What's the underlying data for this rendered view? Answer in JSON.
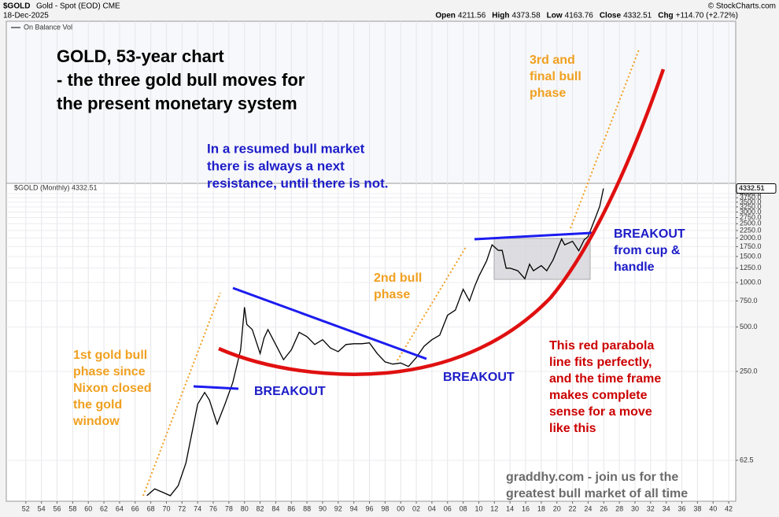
{
  "header": {
    "symbol": "$GOLD",
    "description": "Gold - Spot (EOD) CME",
    "date": "18-Dec-2025",
    "source": "© StockCharts.com",
    "stats": [
      {
        "label": "Open",
        "value": "4211.56"
      },
      {
        "label": "High",
        "value": "4373.58"
      },
      {
        "label": "Low",
        "value": "4163.76"
      },
      {
        "label": "Close",
        "value": "4332.51"
      },
      {
        "label": "Chg",
        "value": "+114.70 (+2.72%)"
      }
    ]
  },
  "chart_data": {
    "type": "line",
    "indicator_label": "On Balance Vol",
    "log_scale": true,
    "grid": true,
    "x": [
      1967.5,
      1968.5,
      1969.5,
      1970.5,
      1971.5,
      1972.5,
      1973.5,
      1974.0,
      1974.9,
      1975.5,
      1976.5,
      1977.5,
      1978.5,
      1979.5,
      1980.0,
      1980.3,
      1981.0,
      1982.0,
      1982.5,
      1983.0,
      1984.0,
      1985.0,
      1986.0,
      1987.0,
      1988.0,
      1989.0,
      1990.0,
      1991.0,
      1992.0,
      1993.0,
      1994.0,
      1995.0,
      1996.0,
      1997.0,
      1998.0,
      1999.0,
      2000.0,
      2001.0,
      2002.0,
      2003.0,
      2004.0,
      2005.0,
      2006.0,
      2007.0,
      2008.0,
      2008.8,
      2009.5,
      2010.0,
      2011.0,
      2011.7,
      2012.5,
      2013.0,
      2013.5,
      2014.0,
      2015.0,
      2015.9,
      2016.5,
      2017.0,
      2018.0,
      2018.7,
      2019.5,
      2020.6,
      2021.0,
      2022.0,
      2022.8,
      2023.5,
      2024.0,
      2024.5,
      2025.0,
      2025.5,
      2025.96
    ],
    "series": [
      {
        "name": "$GOLD (Monthly) 4332.51",
        "color": "#000000",
        "values": [
          36,
          40,
          38,
          36,
          42,
          60,
          110,
          150,
          180,
          160,
          110,
          150,
          210,
          350,
          680,
          520,
          480,
          330,
          420,
          480,
          380,
          300,
          350,
          460,
          430,
          380,
          410,
          360,
          340,
          380,
          385,
          385,
          390,
          330,
          290,
          280,
          285,
          270,
          310,
          370,
          410,
          440,
          600,
          650,
          900,
          750,
          950,
          1100,
          1400,
          1800,
          1650,
          1650,
          1250,
          1250,
          1200,
          1060,
          1330,
          1200,
          1300,
          1200,
          1420,
          1970,
          1800,
          1900,
          1640,
          1950,
          2050,
          2400,
          2800,
          3300,
          4332.51
        ]
      }
    ],
    "xlim": [
      1949.5,
      2042.9
    ],
    "ylim": [
      33,
      4692
    ],
    "xticks": [
      {
        "value": 1952,
        "label": "52"
      },
      {
        "value": 1954,
        "label": "54"
      },
      {
        "value": 1956,
        "label": "56"
      },
      {
        "value": 1958,
        "label": "58"
      },
      {
        "value": 1960,
        "label": "60"
      },
      {
        "value": 1962,
        "label": "62"
      },
      {
        "value": 1964,
        "label": "64"
      },
      {
        "value": 1966,
        "label": "66"
      },
      {
        "value": 1968,
        "label": "68"
      },
      {
        "value": 1970,
        "label": "70"
      },
      {
        "value": 1972,
        "label": "72"
      },
      {
        "value": 1974,
        "label": "74"
      },
      {
        "value": 1976,
        "label": "76"
      },
      {
        "value": 1978,
        "label": "78"
      },
      {
        "value": 1980,
        "label": "80"
      },
      {
        "value": 1982,
        "label": "82"
      },
      {
        "value": 1984,
        "label": "84"
      },
      {
        "value": 1986,
        "label": "86"
      },
      {
        "value": 1988,
        "label": "88"
      },
      {
        "value": 1990,
        "label": "90"
      },
      {
        "value": 1992,
        "label": "92"
      },
      {
        "value": 1994,
        "label": "94"
      },
      {
        "value": 1996,
        "label": "96"
      },
      {
        "value": 1998,
        "label": "98"
      },
      {
        "value": 2000,
        "label": "00"
      },
      {
        "value": 2002,
        "label": "02"
      },
      {
        "value": 2004,
        "label": "04"
      },
      {
        "value": 2006,
        "label": "06"
      },
      {
        "value": 2008,
        "label": "08"
      },
      {
        "value": 2010,
        "label": "10"
      },
      {
        "value": 2012,
        "label": "12"
      },
      {
        "value": 2014,
        "label": "14"
      },
      {
        "value": 2016,
        "label": "16"
      },
      {
        "value": 2018,
        "label": "18"
      },
      {
        "value": 2020,
        "label": "20"
      },
      {
        "value": 2022,
        "label": "22"
      },
      {
        "value": 2024,
        "label": "24"
      },
      {
        "value": 2026,
        "label": "26"
      },
      {
        "value": 2028,
        "label": "28"
      },
      {
        "value": 2030,
        "label": "30"
      },
      {
        "value": 2032,
        "label": "32"
      },
      {
        "value": 2034,
        "label": "34"
      },
      {
        "value": 2036,
        "label": "36"
      },
      {
        "value": 2038,
        "label": "38"
      },
      {
        "value": 2040,
        "label": "40"
      },
      {
        "value": 2042,
        "label": "42"
      }
    ],
    "yticks": [
      {
        "value": 4000,
        "label": "4000.0"
      },
      {
        "value": 3750,
        "label": "3750.0"
      },
      {
        "value": 3500,
        "label": "3500.0"
      },
      {
        "value": 3250,
        "label": "3250.0"
      },
      {
        "value": 3000,
        "label": "3000.0"
      },
      {
        "value": 2750,
        "label": "2750.0"
      },
      {
        "value": 2500,
        "label": "2500.0"
      },
      {
        "value": 2250,
        "label": "2250.0"
      },
      {
        "value": 2000,
        "label": "2000.0"
      },
      {
        "value": 1750,
        "label": "1750.0"
      },
      {
        "value": 1500,
        "label": "1500.0"
      },
      {
        "value": 1250,
        "label": "1250.0"
      },
      {
        "value": 1000,
        "label": "1000.0"
      },
      {
        "value": 750,
        "label": "750.0"
      },
      {
        "value": 500,
        "label": "500.0"
      },
      {
        "value": 250,
        "label": "250.0"
      },
      62.5
    ],
    "annotations": [
      {
        "color": "#000000",
        "lines": [
          "GOLD, 53-year chart",
          "- the three gold bull moves for",
          "the present monetary system"
        ]
      },
      {
        "color": "#1c1cc8",
        "lines": [
          "In a resumed bull market",
          "there is always a next",
          "resistance, until there is not."
        ]
      },
      {
        "color": "#f0a020",
        "lines": [
          "3rd and",
          "final bull",
          "phase"
        ]
      },
      {
        "color": "#f0a020",
        "lines": [
          "2nd bull",
          "phase"
        ]
      },
      {
        "color": "#f0a020",
        "lines": [
          "1st gold bull",
          "phase since",
          "Nixon closed",
          "the gold",
          "window"
        ]
      },
      {
        "color": "#1c1cc8",
        "lines": [
          "BREAKOUT"
        ]
      },
      {
        "color": "#1c1cc8",
        "lines": [
          "BREAKOUT"
        ]
      },
      {
        "color": "#1c1cc8",
        "lines": [
          "BREAKOUT",
          "from cup &",
          "handle"
        ]
      },
      {
        "color": "#cc0000",
        "lines": [
          "This red parabola",
          "line fits perfectly,",
          "and the time frame",
          "makes complete",
          "sense for a move",
          "like this"
        ]
      },
      {
        "color": "#6b6b6b",
        "lines": [
          "graddhy.com - join us for the",
          "greatest bull market of all time"
        ]
      }
    ]
  }
}
